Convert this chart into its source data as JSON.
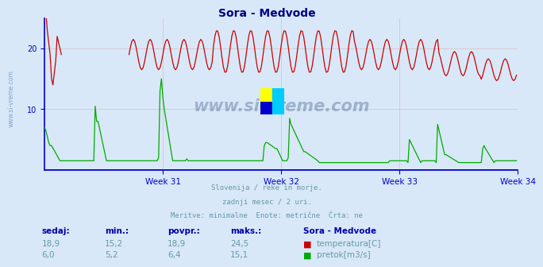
{
  "title": "Sora - Medvode",
  "title_color": "#000080",
  "bg_color": "#d8e8f8",
  "plot_bg_color": "#d8e8f8",
  "grid_color": "#d0a0a0",
  "axis_color": "#0000cc",
  "watermark": "www.si-vreme.com",
  "watermark_color": "#1a3a6a",
  "subtitle_lines": [
    "Slovenija / reke in morje.",
    "zadnji mesec / 2 uri.",
    "Meritve: minimalne  Enote: metrične  Črta: ne"
  ],
  "subtitle_color": "#6699aa",
  "xlim": [
    0,
    336
  ],
  "ylim": [
    0,
    25
  ],
  "yticks": [
    10,
    20
  ],
  "xtick_positions": [
    84,
    168,
    252,
    336
  ],
  "xtick_labels": [
    "Week 31",
    "Week 32",
    "Week 33",
    "Week 34"
  ],
  "temp_color": "#cc0000",
  "flow_color": "#00aa00",
  "temp_min": "15,2",
  "temp_max": "24,5",
  "temp_avg": "18,9",
  "temp_cur": "18,9",
  "flow_min": "5,2",
  "flow_max": "15,1",
  "flow_avg": "6,4",
  "flow_cur": "6,0",
  "table_headers": [
    "sedaj:",
    "min.:",
    "povpr.:",
    "maks.:"
  ],
  "table_color": "#0000aa",
  "legend_title": "Sora - Medvode",
  "legend_items": [
    "temperatura[C]",
    "pretok[m3/s]"
  ],
  "logo_colors": [
    "#ffff00",
    "#00ccff",
    "#0000cc",
    "#00aa88"
  ]
}
